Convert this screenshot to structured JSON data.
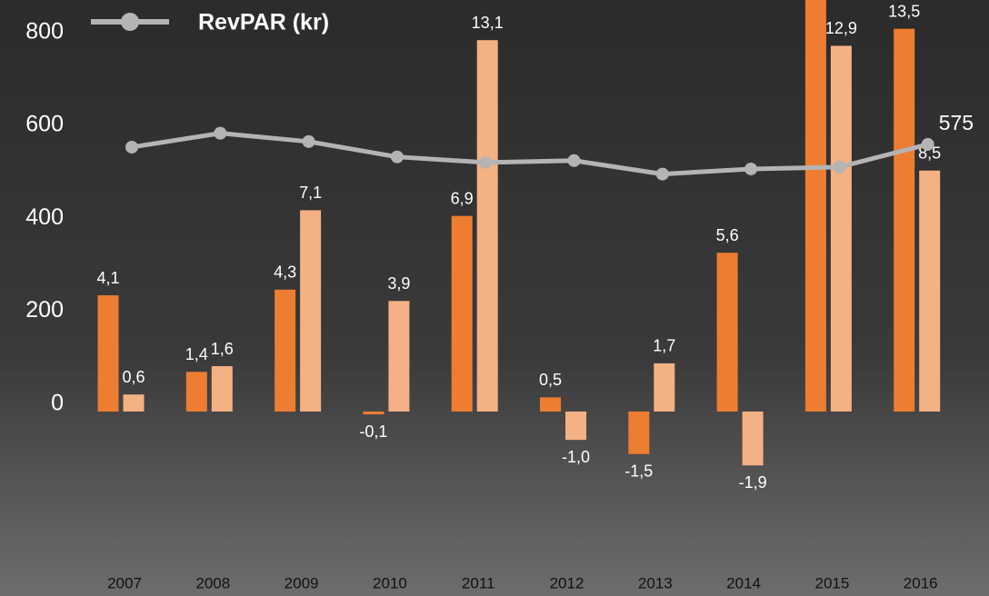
{
  "chart_data": {
    "type": "bar",
    "categories": [
      "2007",
      "2008",
      "2009",
      "2010",
      "2011",
      "2012",
      "2013",
      "2014",
      "2015",
      "2016"
    ],
    "ylim": [
      -200,
      880
    ],
    "yticks": [
      0,
      200,
      400,
      600,
      800
    ],
    "y2lim": [
      -3.27,
      14.42
    ],
    "legend": "top-left",
    "series": [
      {
        "name": "RevPAR (kr)",
        "type": "line",
        "color": "#b4b4b4",
        "axis": "y",
        "values": [
          569,
          599,
          581,
          548,
          536,
          540,
          511,
          522,
          526,
          575
        ]
      },
      {
        "type": "bar",
        "color": "#ed7d31",
        "axis": "y2",
        "values": [
          4.1,
          1.4,
          4.3,
          -0.1,
          6.9,
          0.5,
          -1.5,
          5.6,
          15,
          13.5
        ],
        "value_labels": [
          "4,1",
          "1,4",
          "4,3",
          "-0,1",
          "6,9",
          "0,5",
          "-1,5",
          "5,6",
          null,
          "13,5"
        ]
      },
      {
        "type": "bar",
        "color": "#f4b183",
        "axis": "y2",
        "values": [
          0.6,
          1.6,
          7.1,
          3.9,
          13.1,
          -1.0,
          1.7,
          -1.9,
          12.9,
          8.5
        ],
        "value_labels": [
          "0,6",
          "1,6",
          "7,1",
          "3,9",
          "13,1",
          "-1,0",
          "1,7",
          "-1,9",
          "12,9",
          "8,5"
        ]
      }
    ]
  }
}
